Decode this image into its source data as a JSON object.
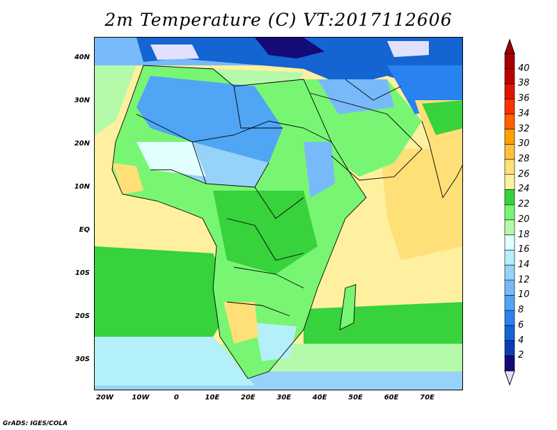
{
  "title": "2m Temperature (C) VT:2017112606",
  "footer": "GrADS: IGES/COLA",
  "map": {
    "lon_range": [
      -23,
      80
    ],
    "lat_range": [
      -37,
      45
    ],
    "lat_ticks": [
      {
        "value": 40,
        "label": "40N"
      },
      {
        "value": 30,
        "label": "30N"
      },
      {
        "value": 20,
        "label": "20N"
      },
      {
        "value": 10,
        "label": "10N"
      },
      {
        "value": 0,
        "label": "EQ"
      },
      {
        "value": -10,
        "label": "10S"
      },
      {
        "value": -20,
        "label": "20S"
      },
      {
        "value": -30,
        "label": "30S"
      }
    ],
    "lon_ticks": [
      {
        "value": -20,
        "label": "20W"
      },
      {
        "value": -10,
        "label": "10W"
      },
      {
        "value": 0,
        "label": "0"
      },
      {
        "value": 10,
        "label": "10E"
      },
      {
        "value": 20,
        "label": "20E"
      },
      {
        "value": 30,
        "label": "30E"
      },
      {
        "value": 40,
        "label": "40E"
      },
      {
        "value": 50,
        "label": "50E"
      },
      {
        "value": 60,
        "label": "60E"
      },
      {
        "value": 70,
        "label": "70E"
      }
    ]
  },
  "colorbar": {
    "levels": [
      2,
      4,
      6,
      8,
      10,
      12,
      14,
      16,
      18,
      20,
      22,
      24,
      26,
      28,
      30,
      32,
      34,
      36,
      38,
      40
    ],
    "labels": [
      "2",
      "4",
      "6",
      "8",
      "10",
      "12",
      "14",
      "16",
      "18",
      "20",
      "22",
      "24",
      "26",
      "28",
      "30",
      "32",
      "34",
      "36",
      "38",
      "40"
    ],
    "colors": [
      "#140a78",
      "#0a3cb4",
      "#1464d2",
      "#2882f0",
      "#50a5f5",
      "#78b9fa",
      "#96d2fa",
      "#b4f0fa",
      "#e1ffff",
      "#b4faaa",
      "#78f573",
      "#37d23c",
      "#fff0a0",
      "#ffe078",
      "#ffc03c",
      "#ffa000",
      "#ff6000",
      "#ff3200",
      "#e11400",
      "#c00000",
      "#a50000"
    ],
    "under_color": "#e1e1ff",
    "over_color": "#a50000"
  }
}
